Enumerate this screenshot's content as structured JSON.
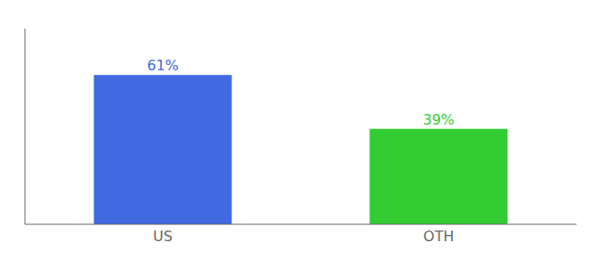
{
  "chart_data": {
    "type": "bar",
    "categories": [
      "US",
      "OTH"
    ],
    "values": [
      61,
      39
    ],
    "value_labels": [
      "61%",
      "39%"
    ],
    "colors": [
      "#4169e1",
      "#33cc33"
    ],
    "ylim": [
      0,
      80
    ],
    "grid": false,
    "data_labels": true,
    "tick_labels": "x"
  }
}
